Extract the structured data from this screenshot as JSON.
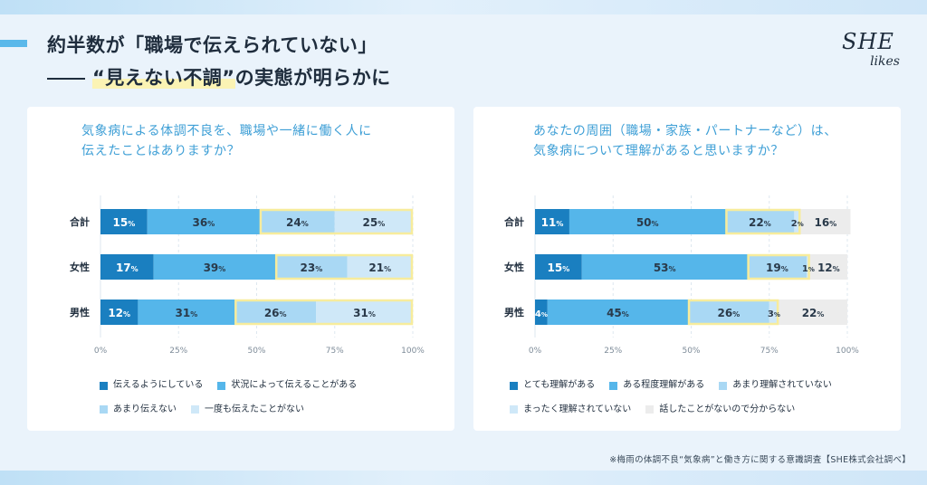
{
  "header": {
    "headline": "約半数が「職場で伝えられていない」",
    "subline_prefix": "“見えない不調”",
    "subline_suffix": "の実態が明らかに"
  },
  "logo": {
    "line1": "SHE",
    "line2": "likes"
  },
  "footnote": "※梅雨の体調不良“気象病”と働き方に関する意識調査【SHE株式会社調べ】",
  "chart_data": [
    {
      "type": "bar",
      "orientation": "horizontal-stacked",
      "title_lines": [
        "気象病による体調不良を、職場や一緒に働く人に",
        "伝えたことはありますか？"
      ],
      "categories": [
        "合計",
        "女性",
        "男性"
      ],
      "series": [
        {
          "name": "伝えるようにしている",
          "values": [
            15,
            17,
            12
          ],
          "color": "#1a7fc0"
        },
        {
          "name": "状況によって伝えることがある",
          "values": [
            36,
            39,
            31
          ],
          "color": "#55b6ea"
        },
        {
          "name": "あまり伝えない",
          "values": [
            24,
            23,
            26
          ],
          "color": "#a9d8f4"
        },
        {
          "name": "一度も伝えたことがない",
          "values": [
            25,
            21,
            31
          ],
          "color": "#cfe8f8"
        }
      ],
      "highlight_from_series": 2,
      "xlim": [
        0,
        100
      ],
      "ticks": [
        "0%",
        "25%",
        "50%",
        "75%",
        "100%"
      ],
      "grid": true
    },
    {
      "type": "bar",
      "orientation": "horizontal-stacked",
      "title_lines": [
        "あなたの周囲（職場・家族・パートナーなど）は、",
        "気象病について理解があると思いますか？"
      ],
      "categories": [
        "合計",
        "女性",
        "男性"
      ],
      "series": [
        {
          "name": "とても理解がある",
          "values": [
            11,
            15,
            4
          ],
          "color": "#1a7fc0"
        },
        {
          "name": "ある程度理解がある",
          "values": [
            50,
            53,
            45
          ],
          "color": "#55b6ea"
        },
        {
          "name": "あまり理解されていない",
          "values": [
            22,
            19,
            26
          ],
          "color": "#a9d8f4"
        },
        {
          "name": "まったく理解されていない",
          "values": [
            2,
            1,
            3
          ],
          "color": "#cfe8f8"
        },
        {
          "name": "話したことがないので分からない",
          "values": [
            16,
            12,
            22
          ],
          "color": "#ececec"
        }
      ],
      "highlight_from_series": 2,
      "highlight_to_series": 3,
      "xlim": [
        0,
        100
      ],
      "ticks": [
        "0%",
        "25%",
        "50%",
        "75%",
        "100%"
      ],
      "grid": true
    }
  ]
}
